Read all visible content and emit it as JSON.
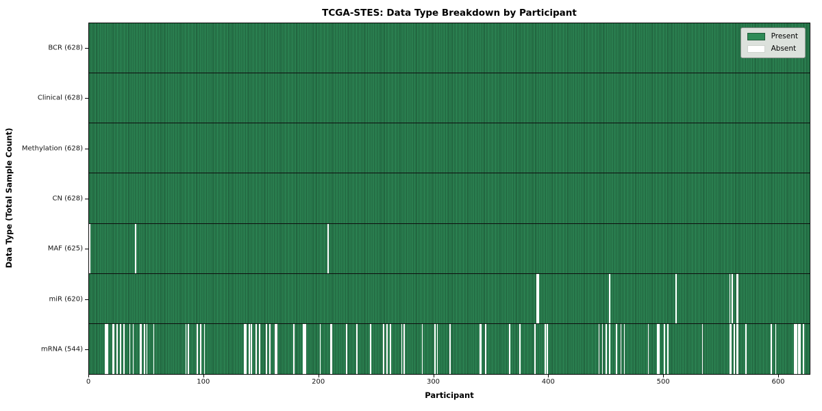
{
  "chart_data": {
    "type": "heatmap",
    "title": "TCGA-STES: Data Type Breakdown by Participant",
    "xlabel": "Participant",
    "ylabel": "Data Type (Total Sample Count)",
    "x_ticks": [
      0,
      100,
      200,
      300,
      400,
      500,
      600
    ],
    "x_range": [
      0,
      628
    ],
    "n_participants": 628,
    "grid": false,
    "legend_position": "upper right",
    "legend": [
      {
        "label": "Present",
        "color": "#2e8b57"
      },
      {
        "label": "Absent",
        "color": "#ffffff"
      }
    ],
    "colors": {
      "present": "#2e8b57",
      "absent": "#ffffff",
      "column_edge": "rgba(0,0,0,0.33)",
      "row_border": "#0d0d0d",
      "legend_background": "#dce1dc"
    },
    "rows": [
      {
        "label": "BCR (628)",
        "data_type": "BCR",
        "present_count": 628,
        "absent_count": 0,
        "absent_participants": []
      },
      {
        "label": "Clinical (628)",
        "data_type": "Clinical",
        "present_count": 628,
        "absent_count": 0,
        "absent_participants": []
      },
      {
        "label": "Methylation (628)",
        "data_type": "Methylation",
        "present_count": 628,
        "absent_count": 0,
        "absent_participants": []
      },
      {
        "label": "CN (628)",
        "data_type": "CN",
        "present_count": 628,
        "absent_count": 0,
        "absent_participants": []
      },
      {
        "label": "MAF (625)",
        "data_type": "MAF",
        "present_count": 625,
        "absent_count": 3,
        "absent_participants": [
          0,
          40,
          208
        ]
      },
      {
        "label": "miR (620)",
        "data_type": "miR",
        "present_count": 620,
        "absent_count": 8,
        "absent_participants": [
          390,
          391,
          453,
          511,
          558,
          560,
          564,
          565
        ]
      },
      {
        "label": "mRNA (544)",
        "data_type": "mRNA",
        "present_count": 544,
        "absent_count": 84,
        "absent_participants": [
          14,
          15,
          16,
          20,
          21,
          24,
          27,
          30,
          35,
          38,
          44,
          45,
          48,
          50,
          56,
          84,
          86,
          94,
          97,
          100,
          135,
          136,
          139,
          141,
          145,
          148,
          154,
          157,
          162,
          163,
          178,
          186,
          187,
          188,
          201,
          210,
          211,
          224,
          233,
          245,
          256,
          259,
          262,
          272,
          274,
          290,
          301,
          303,
          314,
          340,
          341,
          345,
          366,
          375,
          388,
          397,
          399,
          444,
          447,
          450,
          453,
          459,
          463,
          466,
          487,
          495,
          496,
          501,
          504,
          534,
          558,
          559,
          562,
          564,
          565,
          572,
          594,
          598,
          614,
          615,
          616,
          618,
          619,
          622
        ]
      }
    ]
  }
}
